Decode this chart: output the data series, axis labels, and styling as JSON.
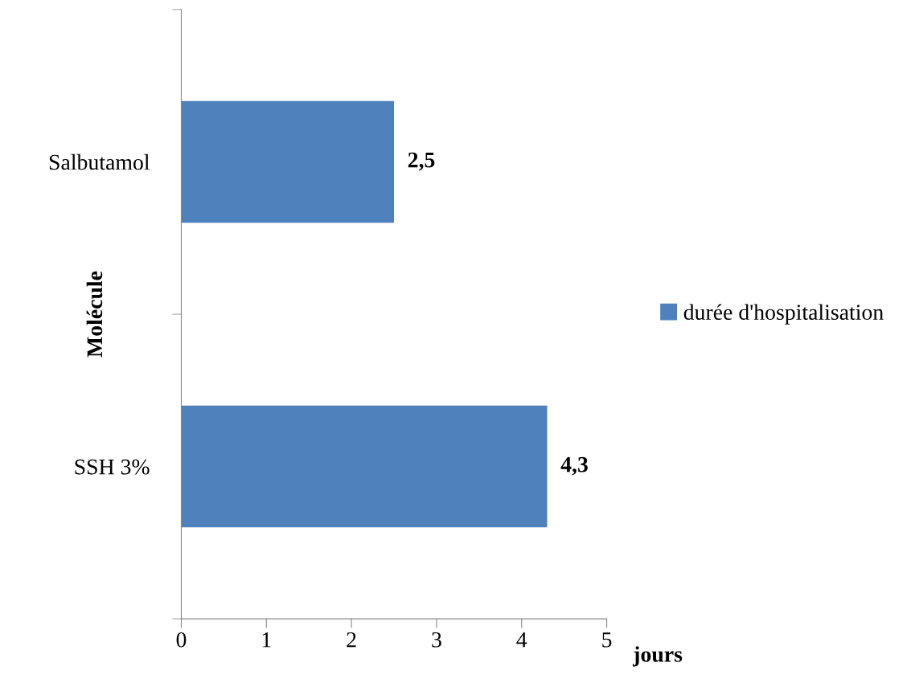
{
  "chart_data": {
    "type": "bar",
    "orientation": "horizontal",
    "categories": [
      "Salbutamol",
      "SSH 3%"
    ],
    "series": [
      {
        "name": "durée d'hospitalisation",
        "color": "#4f81bd",
        "values": [
          2.5,
          4.3
        ],
        "value_labels": [
          "2,5",
          "4,3"
        ]
      }
    ],
    "xlabel": "jours",
    "ylabel": "Molécule",
    "xlim": [
      0,
      5
    ],
    "xticks": [
      0,
      1,
      2,
      3,
      4,
      5
    ],
    "grid": false,
    "legend": "right"
  }
}
